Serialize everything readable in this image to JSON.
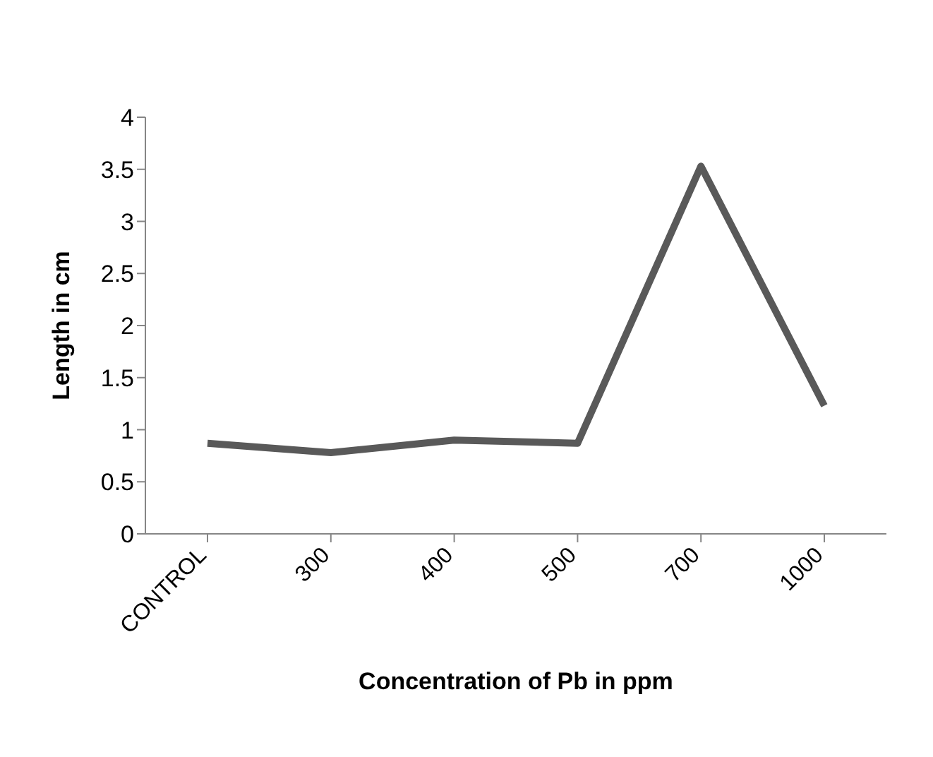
{
  "chart_data": {
    "type": "line",
    "xlabel": "Concentration of Pb in ppm",
    "ylabel": "Length in cm",
    "categories": [
      "CONTROL",
      "300",
      "400",
      "500",
      "700",
      "1000"
    ],
    "series": [
      {
        "color": "#595959",
        "values": [
          0.87,
          0.78,
          0.9,
          0.87,
          3.53,
          1.23
        ]
      }
    ],
    "ylim": [
      0,
      4
    ],
    "yticks": [
      0,
      0.5,
      1,
      1.5,
      2,
      2.5,
      3,
      3.5,
      4
    ],
    "grid": false,
    "legend": false,
    "marker": "none",
    "line_style": "solid"
  }
}
